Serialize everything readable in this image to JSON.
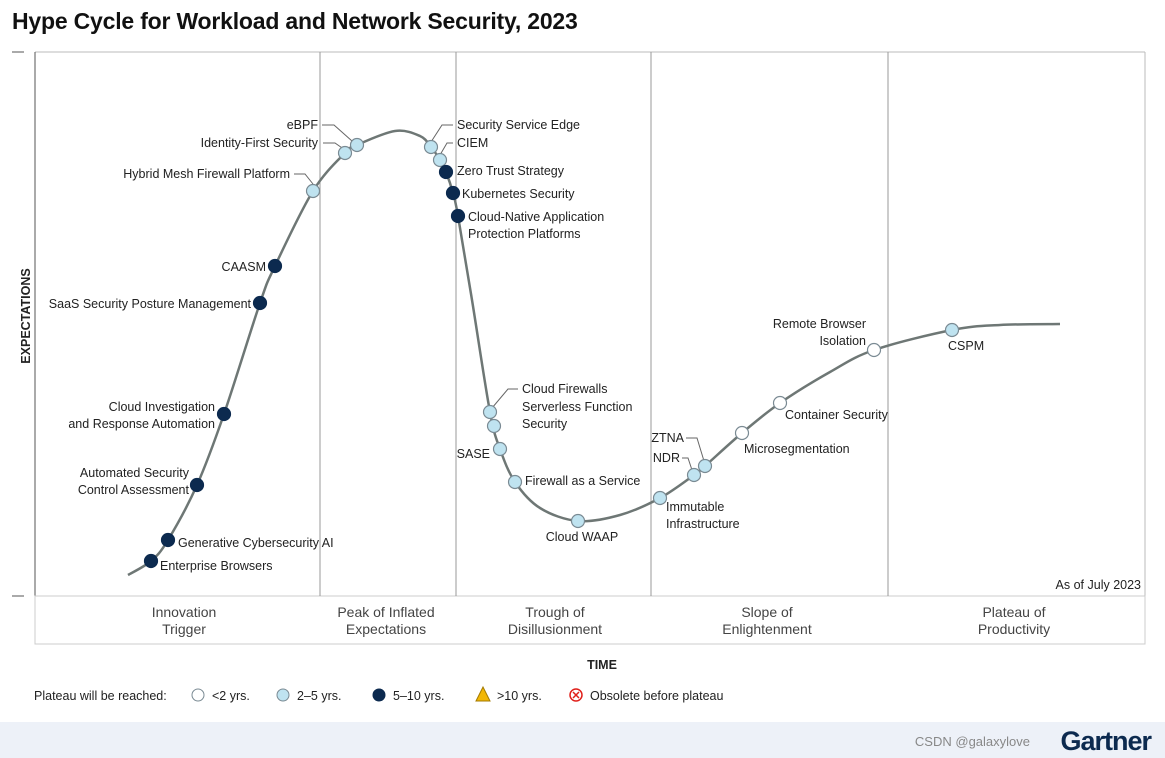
{
  "title": "Hype Cycle for Workload and Network Security, 2023",
  "chart_data": {
    "type": "scatter",
    "title": "Hype Cycle for Workload and Network Security, 2023",
    "xlabel": "TIME",
    "ylabel": "EXPECTATIONS",
    "phases": [
      "Innovation\nTrigger",
      "Peak of Inflated\nExpectations",
      "Trough of\nDisillusionment",
      "Slope of\nEnlightenment",
      "Plateau of\nProductivity"
    ],
    "as_of": "As of July 2023",
    "legend_title": "Plateau will be reached:",
    "legend": [
      {
        "key": "lt2",
        "label": "<2 yrs.",
        "color": "#ffffff"
      },
      {
        "key": "2to5",
        "label": "2–5 yrs.",
        "color": "#bfe3f0"
      },
      {
        "key": "5to10",
        "label": "5–10 yrs.",
        "color": "#0c2a4f"
      },
      {
        "key": "gt10",
        "label": ">10 yrs.",
        "color": "#f2b705"
      },
      {
        "key": "obsolete",
        "label": "Obsolete before plateau",
        "color": "#e0201b"
      }
    ],
    "points": [
      {
        "name": "Enterprise Browsers",
        "plateau": "5to10",
        "phase": "Innovation Trigger"
      },
      {
        "name": "Generative Cybersecurity AI",
        "plateau": "5to10",
        "phase": "Innovation Trigger"
      },
      {
        "name": "Automated Security\nControl Assessment",
        "plateau": "5to10",
        "phase": "Innovation Trigger"
      },
      {
        "name": "Cloud Investigation\nand Response Automation",
        "plateau": "5to10",
        "phase": "Innovation Trigger"
      },
      {
        "name": "SaaS Security Posture Management",
        "plateau": "5to10",
        "phase": "Innovation Trigger"
      },
      {
        "name": "CAASM",
        "plateau": "5to10",
        "phase": "Innovation Trigger"
      },
      {
        "name": "Hybrid Mesh Firewall Platform",
        "plateau": "2to5",
        "phase": "Innovation Trigger"
      },
      {
        "name": "Identity-First Security",
        "plateau": "2to5",
        "phase": "Peak of Inflated Expectations"
      },
      {
        "name": "eBPF",
        "plateau": "2to5",
        "phase": "Peak of Inflated Expectations"
      },
      {
        "name": "Security Service Edge",
        "plateau": "2to5",
        "phase": "Peak of Inflated Expectations"
      },
      {
        "name": "CIEM",
        "plateau": "2to5",
        "phase": "Peak of Inflated Expectations"
      },
      {
        "name": "Zero Trust Strategy",
        "plateau": "5to10",
        "phase": "Peak of Inflated Expectations"
      },
      {
        "name": "Kubernetes Security",
        "plateau": "5to10",
        "phase": "Peak of Inflated Expectations"
      },
      {
        "name": "Cloud-Native Application\nProtection Platforms",
        "plateau": "5to10",
        "phase": "Trough of Disillusionment"
      },
      {
        "name": "Cloud Firewalls",
        "plateau": "2to5",
        "phase": "Trough of Disillusionment"
      },
      {
        "name": "Serverless Function\nSecurity",
        "plateau": "2to5",
        "phase": "Trough of Disillusionment"
      },
      {
        "name": "SASE",
        "plateau": "2to5",
        "phase": "Trough of Disillusionment"
      },
      {
        "name": "Firewall as a Service",
        "plateau": "2to5",
        "phase": "Trough of Disillusionment"
      },
      {
        "name": "Cloud WAAP",
        "plateau": "2to5",
        "phase": "Trough of Disillusionment"
      },
      {
        "name": "Immutable\nInfrastructure",
        "plateau": "2to5",
        "phase": "Slope of Enlightenment"
      },
      {
        "name": "NDR",
        "plateau": "2to5",
        "phase": "Slope of Enlightenment"
      },
      {
        "name": "ZTNA",
        "plateau": "2to5",
        "phase": "Slope of Enlightenment"
      },
      {
        "name": "Microsegmentation",
        "plateau": "lt2",
        "phase": "Slope of Enlightenment"
      },
      {
        "name": "Container Security",
        "plateau": "lt2",
        "phase": "Slope of Enlightenment"
      },
      {
        "name": "Remote Browser\nIsolation",
        "plateau": "lt2",
        "phase": "Slope of Enlightenment"
      },
      {
        "name": "CSPM",
        "plateau": "2to5",
        "phase": "Slope of Enlightenment"
      }
    ]
  },
  "footer": {
    "logo": "Gartner",
    "watermark": "CSDN @galaxylove"
  }
}
